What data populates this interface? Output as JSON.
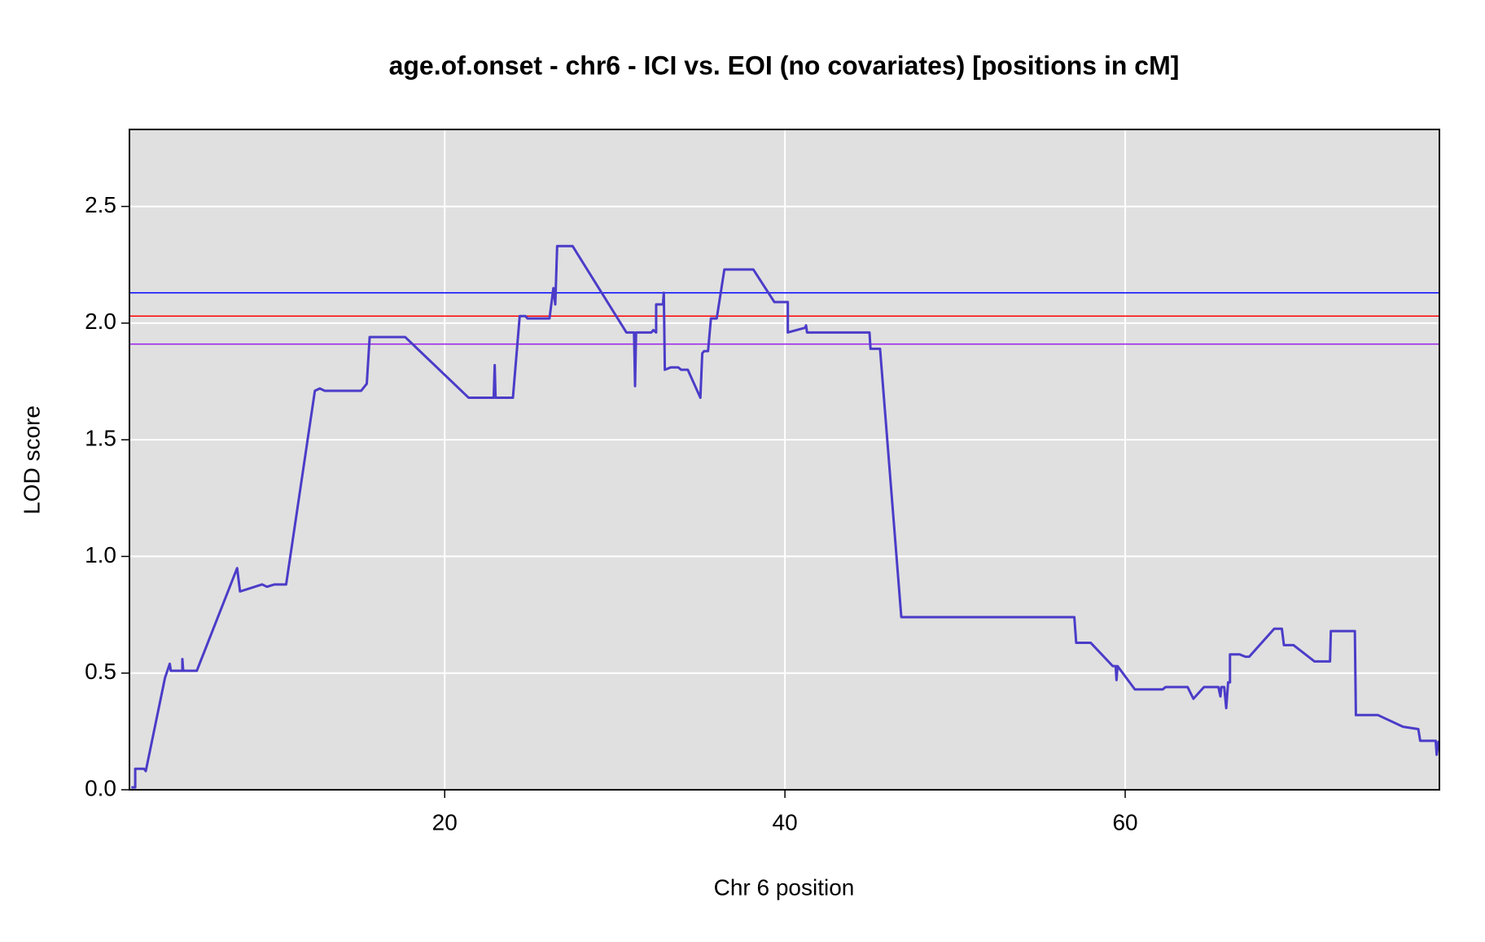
{
  "chart_data": {
    "type": "line",
    "title": "age.of.onset - chr6 - ICI vs. EOI (no covariates) [positions in cM]",
    "xlabel": "Chr 6 position",
    "ylabel": "LOD score",
    "xlim": [
      1.47,
      78.47
    ],
    "ylim": [
      0,
      2.83
    ],
    "xticks": [
      20,
      40,
      60
    ],
    "yticks": [
      {
        "value": 0,
        "label": "0.0"
      },
      0.5,
      {
        "value": 1,
        "label": "1.0"
      },
      1.5,
      {
        "value": 2,
        "label": "2.0"
      },
      2.5
    ],
    "grid": true,
    "hlines": [
      {
        "value": 2.13,
        "color": "#0000ff"
      },
      {
        "value": 2.03,
        "color": "#ff0000"
      },
      {
        "value": 1.91,
        "color": "#9a1fe8"
      }
    ],
    "series": [
      {
        "color": "#4b3cc8",
        "x": [
          1.58,
          1.81,
          1.81,
          2.32,
          2.43,
          3.56,
          3.84,
          3.9,
          4.58,
          4.58,
          4.63,
          5.43,
          7.8,
          7.97,
          9.27,
          9.55,
          10.0,
          10.68,
          12.37,
          12.66,
          12.94,
          15.09,
          15.42,
          15.59,
          17.68,
          21.41,
          22.88,
          22.94,
          22.99,
          24.01,
          24.41,
          24.75,
          24.86,
          26.16,
          26.39,
          26.5,
          26.61,
          27.52,
          30.68,
          31.13,
          31.19,
          31.25,
          32.15,
          32.26,
          32.43,
          32.43,
          32.83,
          32.88,
          32.94,
          33.28,
          33.73,
          33.9,
          34.29,
          35.03,
          35.14,
          35.25,
          35.48,
          35.65,
          35.99,
          36.44,
          38.14,
          39.38,
          40.17,
          40.17,
          41.19,
          41.24,
          41.3,
          44.97,
          45.03,
          45.59,
          46.84,
          57.01,
          57.12,
          57.97,
          59.27,
          59.44,
          59.49,
          59.55,
          60.57,
          62.2,
          62.37,
          63.67,
          64.01,
          64.63,
          65.48,
          65.6,
          65.65,
          65.82,
          65.94,
          66.05,
          66.16,
          66.16,
          66.73,
          67.07,
          67.29,
          68.76,
          69.21,
          69.33,
          69.89,
          71.13,
          72.04,
          72.09,
          73.5,
          73.56,
          74.86,
          76.33,
          77.23,
          77.34,
          77.91,
          78.25,
          78.31,
          78.42
        ],
        "values": [
          0.01,
          0.01,
          0.09,
          0.09,
          0.08,
          0.48,
          0.54,
          0.51,
          0.51,
          0.56,
          0.51,
          0.51,
          0.95,
          0.85,
          0.88,
          0.87,
          0.88,
          0.88,
          1.71,
          1.72,
          1.71,
          1.71,
          1.74,
          1.94,
          1.94,
          1.68,
          1.68,
          1.82,
          1.68,
          1.68,
          2.03,
          2.03,
          2.02,
          2.02,
          2.15,
          2.08,
          2.33,
          2.33,
          1.96,
          1.96,
          1.73,
          1.96,
          1.96,
          1.97,
          1.96,
          2.08,
          2.08,
          2.13,
          1.8,
          1.81,
          1.81,
          1.8,
          1.8,
          1.68,
          1.87,
          1.88,
          1.88,
          2.02,
          2.02,
          2.23,
          2.23,
          2.09,
          2.09,
          1.96,
          1.98,
          1.99,
          1.96,
          1.96,
          1.89,
          1.89,
          0.74,
          0.74,
          0.63,
          0.63,
          0.53,
          0.53,
          0.47,
          0.53,
          0.43,
          0.43,
          0.44,
          0.44,
          0.39,
          0.44,
          0.44,
          0.4,
          0.44,
          0.44,
          0.35,
          0.46,
          0.46,
          0.58,
          0.58,
          0.57,
          0.57,
          0.69,
          0.69,
          0.62,
          0.62,
          0.55,
          0.55,
          0.68,
          0.68,
          0.32,
          0.32,
          0.27,
          0.26,
          0.21,
          0.21,
          0.21,
          0.15,
          0.21
        ]
      }
    ]
  }
}
